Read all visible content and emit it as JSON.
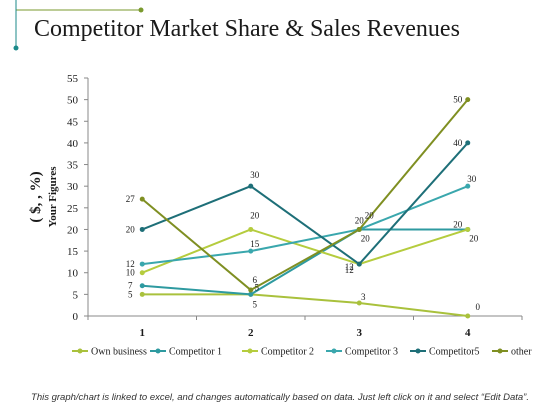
{
  "title": "Competitor Market Share & Sales Revenues",
  "footnote": "This graph/chart is linked to excel, and changes automatically based on data. Just left click on it and select “Edit Data”.",
  "colors": {
    "accent": "#7a9a2e",
    "accent_teal": "#1b8a8a",
    "axis": "#888888",
    "text": "#1a1a1a"
  },
  "chart_data": {
    "type": "line",
    "title": "",
    "xlabel": "",
    "ylabel": "( $, , %) Your Figures",
    "ylabel_parts": [
      "( $, , %)",
      "Your Figures"
    ],
    "categories": [
      "1",
      "2",
      "3",
      "4"
    ],
    "ylim": [
      0,
      55
    ],
    "yticks": [
      0,
      5,
      10,
      15,
      20,
      25,
      30,
      35,
      40,
      45,
      50,
      55
    ],
    "grid": false,
    "legend": "bottom",
    "series": [
      {
        "name": "Own business",
        "values": [
          5,
          5,
          3,
          0
        ],
        "color": "#a9c13c"
      },
      {
        "name": "Competitor 1",
        "values": [
          7,
          5,
          20,
          20
        ],
        "color": "#2e9aa0"
      },
      {
        "name": "Competitor 2",
        "values": [
          10,
          20,
          12,
          20
        ],
        "color": "#b5cc3e"
      },
      {
        "name": "Competitor 3",
        "values": [
          12,
          15,
          20,
          30
        ],
        "color": "#3aa7ad"
      },
      {
        "name": "Competitor5",
        "values": [
          20,
          30,
          12,
          40
        ],
        "color": "#1e6f78"
      },
      {
        "name": "other",
        "values": [
          27,
          6,
          20,
          50
        ],
        "color": "#7f8f22"
      }
    ]
  }
}
